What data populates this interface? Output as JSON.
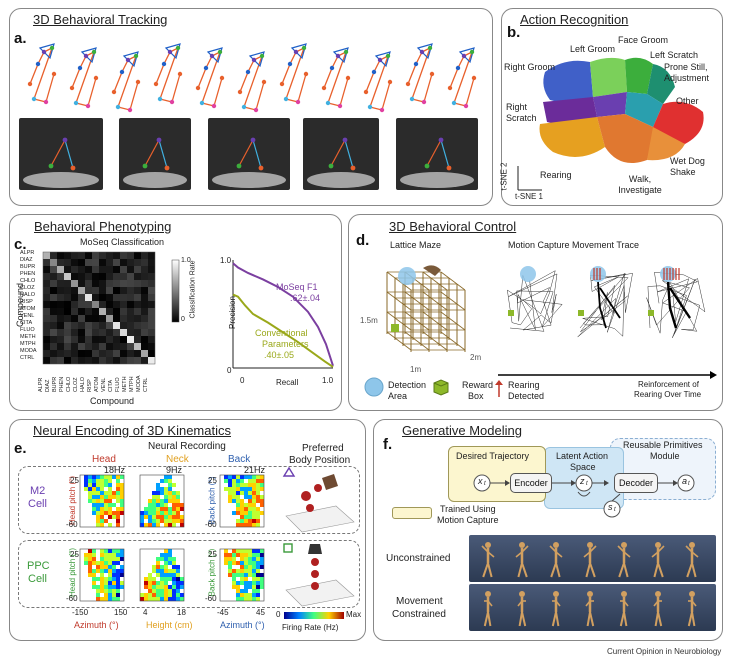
{
  "panel_a": {
    "label": "a.",
    "title": "3D Behavioral Tracking"
  },
  "panel_b": {
    "label": "b.",
    "title": "Action Recognition",
    "clusters": [
      "Face Groom",
      "Left Groom",
      "Left Scratch",
      "Right Groom",
      "Prone Still, Adjustment",
      "Other",
      "Right Scratch",
      "Wet Dog Shake",
      "Rearing",
      "Walk, Investigate"
    ],
    "axis_y": "t-SNE 2",
    "axis_x": "t-SNE 1",
    "colors": {
      "face_groom": "#3cae3c",
      "left_groom": "#7bd05a",
      "left_scratch": "#1e8f70",
      "right_groom": "#4060c8",
      "prone": "#2a9fae",
      "other": "#6a3fb0",
      "right_scratch": "#6b2c9a",
      "wet_dog": "#e03030",
      "rearing": "#e6a020",
      "walk": "#e07830"
    }
  },
  "panel_c": {
    "label": "c.",
    "title": "Behavioral Phenotyping",
    "matrix_title": "MoSeq Classification",
    "compounds": [
      "ALPR",
      "DIAZ",
      "BUPR",
      "PHEN",
      "CHLO",
      "CLOZ",
      "HALO",
      "RISP",
      "ATOM",
      "VENL",
      "CITA",
      "FLUO",
      "METH",
      "MTPH",
      "MODA",
      "CTRL"
    ],
    "ylabel": "Compound",
    "xlabel": "Compound",
    "colorbar_label": "Classification Rate",
    "colorbar_ticks": [
      "1.0",
      "0"
    ],
    "chart_data": {
      "type": "line",
      "xlabel": "Recall",
      "ylabel": "Precision",
      "xlim": [
        0,
        1
      ],
      "ylim": [
        0,
        1
      ],
      "x_ticks": [
        "0",
        "1.0"
      ],
      "y_ticks": [
        "1.0",
        "0"
      ],
      "series": [
        {
          "name": "MoSeq F1 .62±.04",
          "color": "#7b3fa0",
          "x": [
            0,
            0.05,
            0.15,
            0.3,
            0.45,
            0.6,
            0.75,
            0.85,
            0.93,
            1.0
          ],
          "y": [
            0.97,
            0.93,
            0.88,
            0.82,
            0.75,
            0.66,
            0.52,
            0.38,
            0.22,
            0.02
          ]
        },
        {
          "name": "Conventional Parameters .40±.05",
          "color": "#9aa81a",
          "x": [
            0,
            0.05,
            0.12,
            0.2,
            0.35,
            0.5,
            0.65,
            0.8,
            0.92,
            1.0
          ],
          "y": [
            0.68,
            0.66,
            0.58,
            0.5,
            0.42,
            0.33,
            0.24,
            0.14,
            0.06,
            0.01
          ]
        }
      ]
    },
    "legend_moseq": [
      "MoSeq F1",
      ".62±.04"
    ],
    "legend_conv": [
      "Conventional",
      "Parameters",
      ".40±.05"
    ]
  },
  "panel_d": {
    "label": "d.",
    "title": "3D Behavioral Control",
    "left_title": "Lattice Maze",
    "right_title": "Motion Capture Movement Trace",
    "dims": [
      "1.5m",
      "2m",
      "1m"
    ],
    "legend": [
      {
        "text": [
          "Detection",
          "Area"
        ]
      },
      {
        "text": [
          "Reward",
          "Box"
        ]
      },
      {
        "text": [
          "Rearing",
          "Detected"
        ]
      }
    ],
    "arrow_label": [
      "Reinforcement of",
      "Rearing Over Time"
    ]
  },
  "panel_e": {
    "label": "e.",
    "title": "Neural Encoding of 3D Kinematics",
    "recording_title": "Neural Recording",
    "columns": [
      "Head",
      "Neck",
      "Back"
    ],
    "column_colors": [
      "#c0392b",
      "#e0a020",
      "#2e5fae"
    ],
    "rates": [
      "18Hz",
      "9Hz",
      "21Hz"
    ],
    "preferred_title": [
      "Preferred",
      "Body Position"
    ],
    "m2_cell": [
      "M2",
      "Cell"
    ],
    "ppc_cell": [
      "PPC",
      "Cell"
    ],
    "ylabels": [
      "Head pitch (°)",
      "Back pitch (°)"
    ],
    "ytick_top_1": "25",
    "ytick_bot_1": "-60",
    "ytick_top_3": "25",
    "ytick_bot_3": "-60",
    "xticks_1": [
      "-150",
      "150"
    ],
    "xticks_2": [
      "4",
      "18"
    ],
    "xticks_3": [
      "-45",
      "45"
    ],
    "xlabels": [
      "Azimuth (°)",
      "Height (cm)",
      "Azimuth (°)"
    ],
    "colorbar": [
      "0",
      "Max"
    ],
    "colorbar_label": "Firing Rate (Hz)"
  },
  "panel_f": {
    "label": "f.",
    "title": "Generative Modeling",
    "reusable": [
      "Reusable Primitives",
      "Module"
    ],
    "desired": "Desired Trajectory",
    "latent": [
      "Latent Action",
      "Space"
    ],
    "encoder": "Encoder",
    "decoder": "Decoder",
    "vars": [
      "x",
      "z",
      "s",
      "a"
    ],
    "sub": "t",
    "trained": [
      "Trained Using",
      "Motion Capture"
    ],
    "unconstrained": "Unconstrained",
    "constrained": [
      "Movement",
      "Constrained"
    ]
  },
  "footer": "Current Opinion in Neurobiology"
}
